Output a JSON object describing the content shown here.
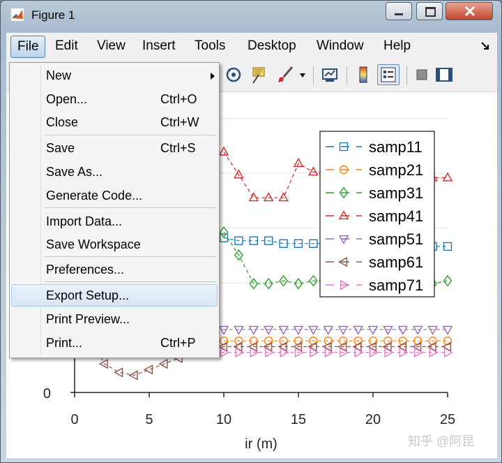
{
  "window": {
    "title": "Figure 1"
  },
  "menubar": [
    "File",
    "Edit",
    "View",
    "Insert",
    "Tools",
    "Desktop",
    "Window",
    "Help"
  ],
  "file_menu": {
    "items": [
      {
        "label": "New",
        "shortcut": "",
        "submenu": true
      },
      {
        "label": "Open...",
        "shortcut": "Ctrl+O"
      },
      {
        "label": "Close",
        "shortcut": "Ctrl+W"
      },
      {
        "label": "Save",
        "shortcut": "Ctrl+S"
      },
      {
        "label": "Save As...",
        "shortcut": ""
      },
      {
        "label": "Generate Code...",
        "shortcut": ""
      },
      {
        "label": "Import Data...",
        "shortcut": ""
      },
      {
        "label": "Save Workspace",
        "shortcut": ""
      },
      {
        "label": "Preferences...",
        "shortcut": ""
      },
      {
        "label": "Export Setup...",
        "shortcut": "",
        "highlighted": true
      },
      {
        "label": "Print Preview...",
        "shortcut": ""
      },
      {
        "label": "Print...",
        "shortcut": "Ctrl+P"
      }
    ]
  },
  "toolbar": {
    "icons": [
      "rotate-3d-icon",
      "data-cursor-icon",
      "brush-icon",
      "link-plot-icon",
      "colorbar-icon",
      "legend-icon",
      "hide-plot-tools-icon",
      "show-plot-tools-icon"
    ]
  },
  "watermark": "知乎 @阿昆",
  "chart_data": {
    "type": "line",
    "xlabel": "ir (m)",
    "x_ticks": [
      0,
      5,
      10,
      15,
      20,
      25
    ],
    "y_ticks_visible": [
      0
    ],
    "xlim": [
      0,
      25
    ],
    "legend_position": "top-right",
    "series": [
      {
        "name": "samp11",
        "color": "#1f77b4",
        "marker": "square",
        "points": [
          [
            10,
            0.27
          ],
          [
            11,
            0.265
          ],
          [
            12,
            0.265
          ],
          [
            13,
            0.265
          ],
          [
            14,
            0.26
          ],
          [
            15,
            0.26
          ],
          [
            16,
            0.26
          ],
          [
            17,
            0.26
          ],
          [
            18,
            0.255
          ],
          [
            19,
            0.255
          ],
          [
            20,
            0.255
          ],
          [
            21,
            0.255
          ],
          [
            22,
            0.255
          ],
          [
            23,
            0.255
          ],
          [
            24,
            0.255
          ],
          [
            25,
            0.255
          ]
        ]
      },
      {
        "name": "samp21",
        "color": "#ff7f0e",
        "marker": "circle",
        "points": [
          [
            3,
            0.12
          ],
          [
            4,
            0.115
          ],
          [
            5,
            0.11
          ],
          [
            6,
            0.1
          ],
          [
            7,
            0.095
          ],
          [
            8,
            0.09
          ],
          [
            9,
            0.09
          ],
          [
            10,
            0.09
          ],
          [
            11,
            0.09
          ],
          [
            12,
            0.09
          ],
          [
            13,
            0.09
          ],
          [
            14,
            0.09
          ],
          [
            15,
            0.09
          ],
          [
            16,
            0.09
          ],
          [
            17,
            0.09
          ],
          [
            18,
            0.09
          ],
          [
            19,
            0.09
          ],
          [
            20,
            0.09
          ],
          [
            21,
            0.09
          ],
          [
            22,
            0.09
          ],
          [
            23,
            0.09
          ],
          [
            24,
            0.09
          ],
          [
            25,
            0.09
          ]
        ]
      },
      {
        "name": "samp31",
        "color": "#2ca02c",
        "marker": "diamond",
        "points": [
          [
            10,
            0.28
          ],
          [
            11,
            0.24
          ],
          [
            12,
            0.19
          ],
          [
            13,
            0.19
          ],
          [
            14,
            0.195
          ],
          [
            15,
            0.19
          ],
          [
            16,
            0.195
          ],
          [
            17,
            0.195
          ],
          [
            18,
            0.19
          ],
          [
            19,
            0.19
          ],
          [
            20,
            0.19
          ],
          [
            21,
            0.19
          ],
          [
            22,
            0.19
          ],
          [
            23,
            0.19
          ],
          [
            24,
            0.19
          ],
          [
            25,
            0.195
          ]
        ]
      },
      {
        "name": "samp41",
        "color": "#d62728",
        "marker": "triangle-up",
        "points": [
          [
            10,
            0.42
          ],
          [
            11,
            0.38
          ],
          [
            12,
            0.34
          ],
          [
            13,
            0.34
          ],
          [
            14,
            0.34
          ],
          [
            15,
            0.4
          ],
          [
            16,
            0.385
          ],
          [
            17,
            0.38
          ],
          [
            18,
            0.28
          ],
          [
            19,
            0.35
          ],
          [
            20,
            0.35
          ],
          [
            21,
            0.35
          ],
          [
            22,
            0.35
          ],
          [
            23,
            0.35
          ],
          [
            24,
            0.375
          ],
          [
            25,
            0.375
          ]
        ]
      },
      {
        "name": "samp51",
        "color": "#9467bd",
        "marker": "triangle-down",
        "points": [
          [
            3,
            0.17
          ],
          [
            4,
            0.16
          ],
          [
            5,
            0.14
          ],
          [
            6,
            0.125
          ],
          [
            7,
            0.11
          ],
          [
            8,
            0.11
          ],
          [
            9,
            0.11
          ],
          [
            10,
            0.11
          ],
          [
            11,
            0.11
          ],
          [
            12,
            0.11
          ],
          [
            13,
            0.11
          ],
          [
            14,
            0.11
          ],
          [
            15,
            0.11
          ],
          [
            16,
            0.11
          ],
          [
            17,
            0.11
          ],
          [
            18,
            0.11
          ],
          [
            19,
            0.11
          ],
          [
            20,
            0.11
          ],
          [
            21,
            0.11
          ],
          [
            22,
            0.11
          ],
          [
            23,
            0.11
          ],
          [
            24,
            0.11
          ],
          [
            25,
            0.11
          ]
        ]
      },
      {
        "name": "samp61",
        "color": "#8c564b",
        "marker": "triangle-left",
        "points": [
          [
            1,
            0.1
          ],
          [
            2,
            0.05
          ],
          [
            3,
            0.035
          ],
          [
            4,
            0.03
          ],
          [
            5,
            0.04
          ],
          [
            6,
            0.05
          ],
          [
            7,
            0.06
          ],
          [
            8,
            0.07
          ],
          [
            9,
            0.075
          ],
          [
            10,
            0.08
          ],
          [
            11,
            0.08
          ],
          [
            12,
            0.08
          ],
          [
            13,
            0.08
          ],
          [
            14,
            0.08
          ],
          [
            15,
            0.08
          ],
          [
            16,
            0.08
          ],
          [
            17,
            0.08
          ],
          [
            18,
            0.08
          ],
          [
            19,
            0.08
          ],
          [
            20,
            0.08
          ],
          [
            21,
            0.08
          ],
          [
            22,
            0.08
          ],
          [
            23,
            0.08
          ],
          [
            24,
            0.08
          ],
          [
            25,
            0.08
          ]
        ]
      },
      {
        "name": "samp71",
        "color": "#e377c2",
        "marker": "triangle-right",
        "points": [
          [
            9,
            0.07
          ],
          [
            10,
            0.07
          ],
          [
            11,
            0.07
          ],
          [
            12,
            0.07
          ],
          [
            13,
            0.07
          ],
          [
            14,
            0.07
          ],
          [
            15,
            0.07
          ],
          [
            16,
            0.07
          ],
          [
            17,
            0.07
          ],
          [
            18,
            0.07
          ],
          [
            19,
            0.07
          ],
          [
            20,
            0.07
          ],
          [
            21,
            0.07
          ],
          [
            22,
            0.07
          ],
          [
            23,
            0.07
          ],
          [
            24,
            0.07
          ],
          [
            25,
            0.07
          ]
        ]
      }
    ]
  }
}
